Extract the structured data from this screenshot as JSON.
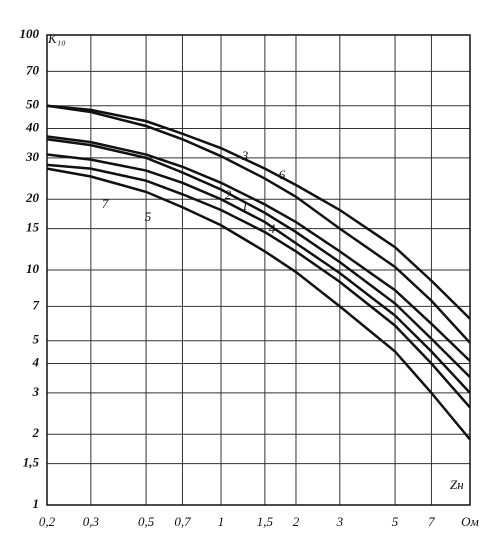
{
  "chart_data": {
    "type": "line",
    "y_label": "K₁₀",
    "x_label": "Zн",
    "x": [
      0.2,
      0.3,
      0.5,
      0.7,
      1,
      1.5,
      2,
      3,
      5,
      7,
      10
    ],
    "series": [
      {
        "name": "1",
        "color": "#111",
        "values": [
          37,
          35,
          31,
          27.5,
          23.5,
          19,
          16,
          12,
          8.2,
          5.9,
          4.1
        ]
      },
      {
        "name": "2",
        "color": "#111",
        "values": [
          36,
          34,
          30,
          26,
          22,
          17.5,
          14.5,
          10.8,
          7.2,
          5.1,
          3.5
        ]
      },
      {
        "name": "3",
        "color": "#111",
        "values": [
          50,
          48,
          43,
          38,
          33,
          27,
          23,
          18,
          12.5,
          9,
          6.2
        ]
      },
      {
        "name": "4",
        "color": "#111",
        "values": [
          31,
          29.5,
          26.5,
          23.5,
          20,
          16,
          13,
          9.7,
          6.4,
          4.5,
          3.0
        ]
      },
      {
        "name": "5",
        "color": "#111",
        "values": [
          27,
          25,
          21.5,
          18.5,
          15.5,
          12,
          9.8,
          7.0,
          4.5,
          3.0,
          1.9
        ]
      },
      {
        "name": "6",
        "color": "#111",
        "values": [
          50,
          47,
          41,
          36,
          30.5,
          24.5,
          20.5,
          15,
          10.3,
          7.4,
          4.9
        ]
      },
      {
        "name": "7",
        "color": "#111",
        "values": [
          28,
          27,
          24,
          21,
          18,
          14.5,
          12,
          8.9,
          5.8,
          4.0,
          2.6
        ]
      }
    ],
    "xlog": true,
    "ylog": true,
    "grid": true,
    "xlim": [
      0.2,
      10
    ],
    "xticks": [
      {
        "value": 0.2,
        "label": "0,2"
      },
      {
        "value": 0.3,
        "label": "0,3"
      },
      {
        "value": 0.5,
        "label": "0,5"
      },
      {
        "value": 0.7,
        "label": "0,7"
      },
      1,
      {
        "value": 1.5,
        "label": "1,5"
      },
      2,
      3,
      5,
      7,
      {
        "value": 10,
        "label": "Ом"
      }
    ],
    "ylim": [
      1,
      100
    ],
    "yticks": [
      1,
      {
        "value": 1.5,
        "label": "1,5"
      },
      2,
      3,
      4,
      5,
      7,
      10,
      15,
      20,
      30,
      40,
      50,
      70,
      100
    ]
  }
}
